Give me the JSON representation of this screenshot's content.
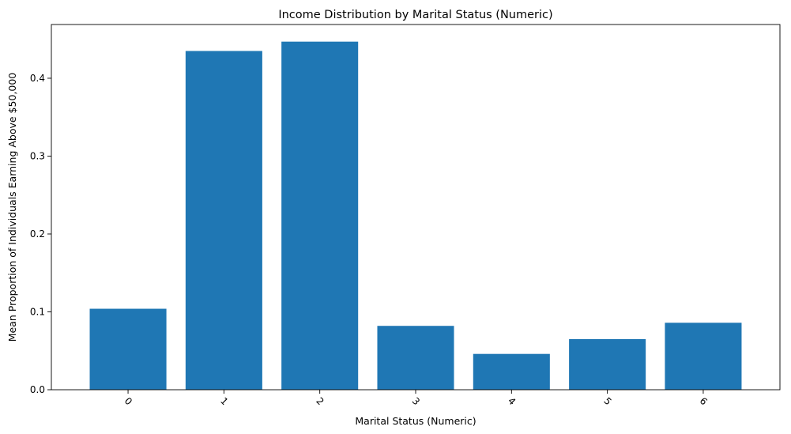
{
  "chart_data": {
    "type": "bar",
    "title": "Income Distribution by Marital Status (Numeric)",
    "xlabel": "Marital Status (Numeric)",
    "ylabel": "Mean Proportion of Individuals Earning Above $50,000",
    "categories": [
      "0",
      "1",
      "2",
      "3",
      "4",
      "5",
      "6"
    ],
    "values": [
      0.104,
      0.435,
      0.447,
      0.082,
      0.046,
      0.065,
      0.086
    ],
    "ylim": [
      0,
      0.469
    ],
    "yticks": [
      0.0,
      0.1,
      0.2,
      0.3,
      0.4
    ],
    "ytick_labels": [
      "0.0",
      "0.1",
      "0.2",
      "0.3",
      "0.4"
    ],
    "xtick_rotation": 45,
    "bar_color": "#1f77b4",
    "grid": false,
    "legend": "none"
  }
}
